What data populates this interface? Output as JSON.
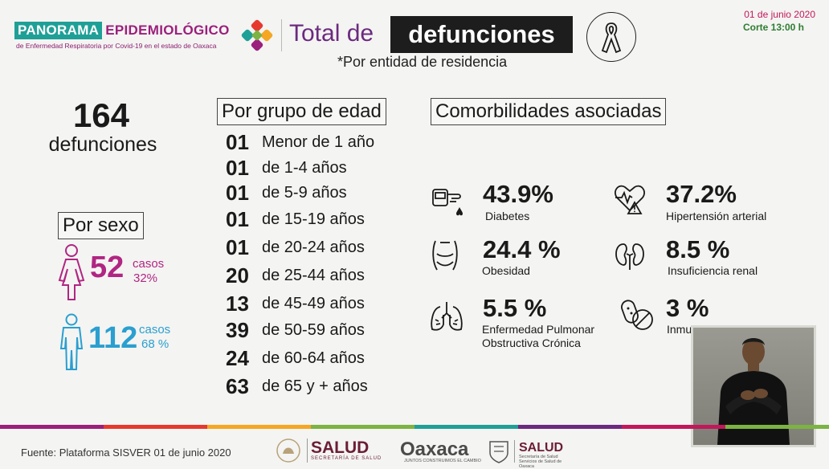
{
  "header": {
    "logo_panorama": "PANORAMA",
    "logo_epidemiologico": "EPIDEMIOLÓGICO",
    "logo_subtitle": "de Enfermedad Respiratoria por Covid-19 en el estado de Oaxaca",
    "title_prefix": "Total de",
    "title_highlight": "defunciones",
    "subtitle": "*Por entidad de residencia",
    "date": "01 de junio 2020",
    "corte": "Corte 13:00 h"
  },
  "total": {
    "number": "164",
    "label": "defunciones"
  },
  "sexo": {
    "title": "Por sexo",
    "female": {
      "count": "52",
      "casos": "casos",
      "pct": "32%"
    },
    "male": {
      "count": "112",
      "casos": "casos",
      "pct": "68 %"
    }
  },
  "edad": {
    "title": "Por grupo de edad",
    "rows": [
      {
        "n": "01",
        "label": "Menor de 1 año"
      },
      {
        "n": "01",
        "label": "de 1-4 años"
      },
      {
        "n": "01",
        "label": "de 5-9 años"
      },
      {
        "n": "01",
        "label": "de 15-19 años"
      },
      {
        "n": "01",
        "label": "de 20-24 años"
      },
      {
        "n": "20",
        "label": "de 25-44 años"
      },
      {
        "n": "13",
        "label": "de 45-49 años"
      },
      {
        "n": "39",
        "label": "de 50-59 años"
      },
      {
        "n": "24",
        "label": "de 60-64 años"
      },
      {
        "n": "63",
        "label": "de 65 y + años"
      }
    ]
  },
  "comorbilidades": {
    "title": "Comorbilidades asociadas",
    "items": [
      {
        "pct": "43.9%",
        "name": "Diabetes",
        "icon": "glucometer-icon"
      },
      {
        "pct": "37.2%",
        "name": "Hipertensión arterial",
        "icon": "heart-warning-icon"
      },
      {
        "pct": "24.4 %",
        "name": "Obesidad",
        "icon": "torso-icon"
      },
      {
        "pct": "8.5 %",
        "name": "Insuficiencia renal",
        "icon": "kidneys-icon"
      },
      {
        "pct": "5.5 %",
        "name": "Enfermedad Pulmonar",
        "name2": "Obstructiva Crónica",
        "icon": "lungs-icon"
      },
      {
        "pct": "3 %",
        "name": "Inmu",
        "icon": "no-pills-icon"
      }
    ]
  },
  "footer": {
    "fuente": "Fuente: Plataforma SISVER 01 de junio 2020",
    "salud": "SALUD",
    "salud_sub": "SECRETARÍA DE SALUD",
    "oaxaca": "Oaxaca",
    "oaxaca_sub": "JUNTOS CONSTRUIMOS EL CAMBIO",
    "salud2": "SALUD",
    "salud2_sub": "Secretaría de Salud Servicios de Salud de Oaxaca"
  },
  "colors": {
    "teal": "#1fa097",
    "purple": "#6b2a7f",
    "magenta": "#b02682",
    "blue": "#2a9fd0",
    "wine": "#6b1d35"
  }
}
